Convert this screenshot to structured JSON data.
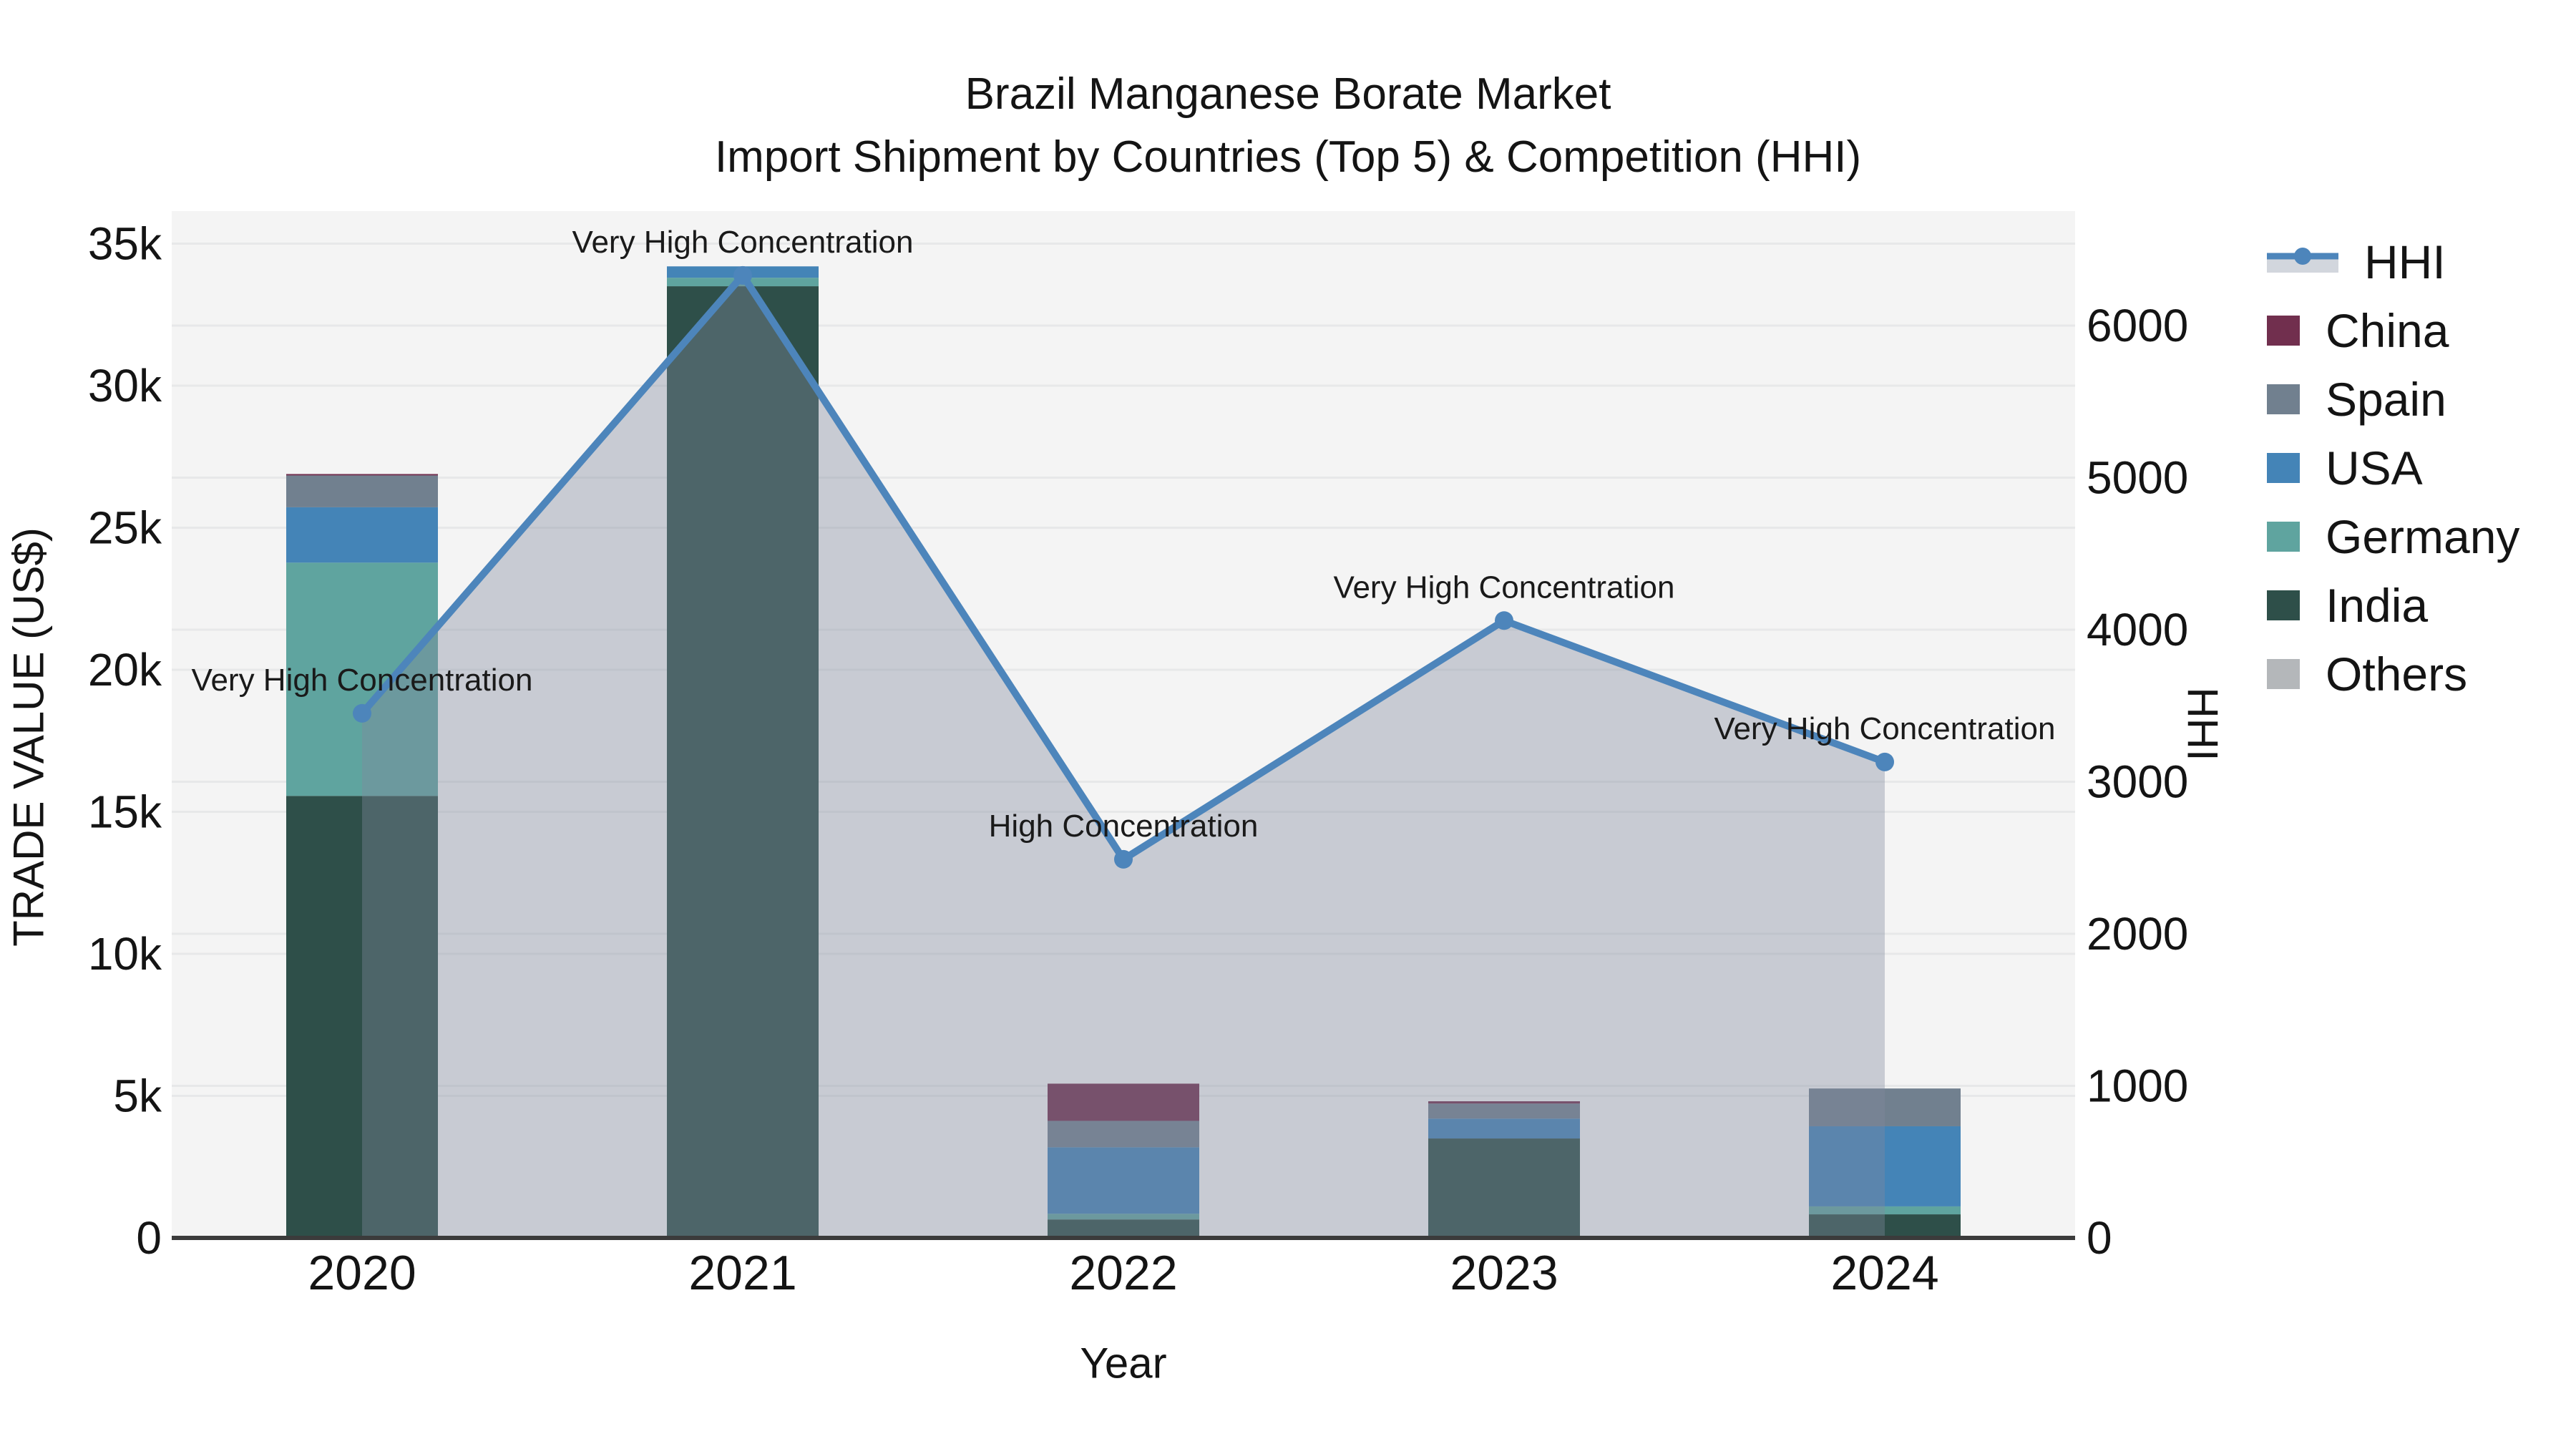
{
  "title": {
    "line1": "Brazil Manganese Borate Market",
    "line2": "Import Shipment by Countries (Top 5) & Competition (HHI)"
  },
  "axes": {
    "x": {
      "title": "Year"
    },
    "y_left": {
      "title": "TRADE VALUE (US$)"
    },
    "y_right": {
      "title": "HHI"
    }
  },
  "legend": {
    "items": [
      {
        "label": "HHI",
        "type": "line",
        "color": "#4d85bb",
        "band_color": "#d2d6dd"
      },
      {
        "label": "China",
        "type": "box",
        "color": "#712f4e"
      },
      {
        "label": "Spain",
        "type": "box",
        "color": "#71808f"
      },
      {
        "label": "USA",
        "type": "box",
        "color": "#4484b7"
      },
      {
        "label": "Germany",
        "type": "box",
        "color": "#5fa49f"
      },
      {
        "label": "India",
        "type": "box",
        "color": "#2e4f49"
      },
      {
        "label": "Others",
        "type": "box",
        "color": "#b4b7ba"
      }
    ]
  },
  "chart_data": {
    "type": "combo-stacked-bar-line",
    "title": "Brazil Manganese Borate Market — Import Shipment by Countries (Top 5) & Competition (HHI)",
    "categories": [
      "2020",
      "2021",
      "2022",
      "2023",
      "2024"
    ],
    "xlabel": "Year",
    "ylabel_left": "TRADE VALUE (US$)",
    "ylabel_right": "HHI",
    "series": [
      {
        "name": "India",
        "color": "#2e4f49",
        "values": [
          15560,
          33500,
          650,
          3500,
          830
        ]
      },
      {
        "name": "Germany",
        "color": "#5fa49f",
        "values": [
          8210,
          300,
          200,
          0,
          280
        ]
      },
      {
        "name": "USA",
        "color": "#4484b7",
        "values": [
          1950,
          400,
          2340,
          700,
          2820
        ]
      },
      {
        "name": "Spain",
        "color": "#71808f",
        "values": [
          1120,
          0,
          930,
          530,
          1330
        ]
      },
      {
        "name": "China",
        "color": "#712f4e",
        "values": [
          50,
          0,
          1310,
          80,
          0
        ]
      },
      {
        "name": "Others",
        "color": "#b4b7ba",
        "values": [
          0,
          0,
          0,
          0,
          0
        ]
      }
    ],
    "bar_totals": [
      26890,
      34200,
      5430,
      4810,
      5260
    ],
    "hhi": {
      "name": "HHI",
      "values": [
        3450,
        6330,
        2490,
        4060,
        3130
      ],
      "line_color": "#4d85bb",
      "marker_color": "#4d85bb",
      "area_fill": "rgba(128,138,158,0.38)"
    },
    "annotations": [
      {
        "x": "2020",
        "text": "Very High Concentration"
      },
      {
        "x": "2021",
        "text": "Very High Concentration"
      },
      {
        "x": "2022",
        "text": "High Concentration"
      },
      {
        "x": "2023",
        "text": "Very High Concentration"
      },
      {
        "x": "2024",
        "text": "Very High Concentration"
      }
    ],
    "y_left_axis": {
      "min": 0,
      "max": 36000,
      "tick_values": [
        0,
        5000,
        10000,
        15000,
        20000,
        25000,
        30000,
        35000
      ],
      "tick_labels": [
        "0",
        "5k",
        "10k",
        "15k",
        "20k",
        "25k",
        "30k",
        "35k"
      ]
    },
    "y_right_axis": {
      "min": 0,
      "max": 6730,
      "tick_values": [
        0,
        1000,
        2000,
        3000,
        4000,
        5000,
        6000
      ],
      "tick_labels": [
        "0",
        "1000",
        "2000",
        "3000",
        "4000",
        "5000",
        "6000"
      ]
    },
    "grid": true,
    "legend_position": "right",
    "style": {
      "plot_bg": "#f4f4f4",
      "grid_color": "#e7e8e9",
      "axis_line_color": "#3b3b3b",
      "tick_text_color": "#141414",
      "annotation_color": "#1a1a1a"
    }
  }
}
